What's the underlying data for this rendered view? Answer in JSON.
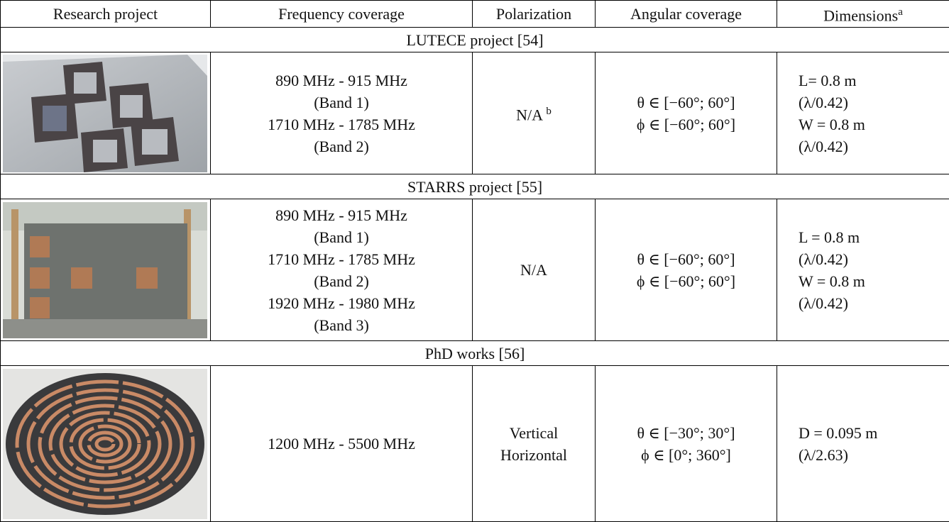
{
  "header": {
    "cells": [
      "Research project",
      "Frequency coverage",
      "Polarization",
      "Angular coverage",
      "Dimensions"
    ],
    "dimensions_note": "a"
  },
  "sections": [
    {
      "title": "LUTECE project [54]",
      "frequency": [
        "890 MHz - 915 MHz",
        "(Band 1)",
        "1710 MHz - 1785 MHz",
        "(Band 2)"
      ],
      "polarization": [
        "N/A"
      ],
      "polarization_note": "b",
      "angular": [
        "θ ∈ [−60°; 60°]",
        "ϕ ∈ [−60°; 60°]"
      ],
      "dimensions": [
        "L= 0.8 m",
        "(λ/0.42)",
        "W = 0.8 m",
        "(λ/0.42)"
      ]
    },
    {
      "title": "STARRS project [55]",
      "frequency": [
        "890 MHz - 915 MHz",
        "(Band 1)",
        "1710 MHz - 1785 MHz",
        "(Band 2)",
        "1920 MHz - 1980 MHz",
        "(Band 3)"
      ],
      "polarization": [
        "N/A"
      ],
      "angular": [
        "θ ∈ [−60°; 60°]",
        "ϕ ∈ [−60°; 60°]"
      ],
      "dimensions": [
        "L = 0.8 m",
        "(λ/0.42)",
        "W = 0.8 m",
        "(λ/0.42)"
      ]
    },
    {
      "title": "PhD works [56]",
      "frequency": [
        "1200 MHz - 5500 MHz"
      ],
      "polarization": [
        "Vertical",
        "Horizontal"
      ],
      "angular": [
        "θ ∈ [−30°; 30°]",
        "ϕ ∈ [0°; 360°]"
      ],
      "dimensions": [
        "D = 0.095 m",
        "(λ/2.63)"
      ]
    }
  ]
}
